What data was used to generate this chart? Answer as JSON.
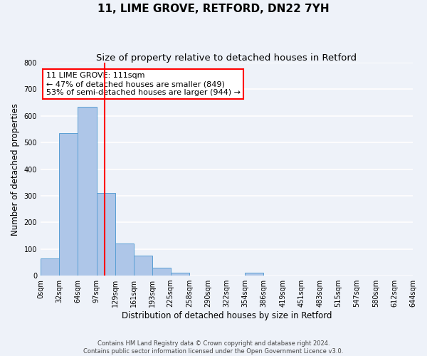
{
  "title": "11, LIME GROVE, RETFORD, DN22 7YH",
  "subtitle": "Size of property relative to detached houses in Retford",
  "xlabel": "Distribution of detached houses by size in Retford",
  "ylabel": "Number of detached properties",
  "bin_edges": [
    0,
    32,
    64,
    97,
    129,
    161,
    193,
    225,
    258,
    290,
    322,
    354,
    386,
    419,
    451,
    483,
    515,
    547,
    580,
    612,
    644
  ],
  "bin_labels": [
    "0sqm",
    "32sqm",
    "64sqm",
    "97sqm",
    "129sqm",
    "161sqm",
    "193sqm",
    "225sqm",
    "258sqm",
    "290sqm",
    "322sqm",
    "354sqm",
    "386sqm",
    "419sqm",
    "451sqm",
    "483sqm",
    "515sqm",
    "547sqm",
    "580sqm",
    "612sqm",
    "644sqm"
  ],
  "bar_heights": [
    65,
    535,
    635,
    310,
    120,
    75,
    30,
    10,
    0,
    0,
    0,
    10,
    0,
    0,
    0,
    0,
    0,
    0,
    0,
    0
  ],
  "bar_color": "#aec6e8",
  "bar_edge_color": "#5a9fd4",
  "ylim": [
    0,
    800
  ],
  "yticks": [
    0,
    100,
    200,
    300,
    400,
    500,
    600,
    700,
    800
  ],
  "property_size": 111,
  "property_size_label": "11 LIME GROVE: 111sqm",
  "red_line_x": 111,
  "pct_smaller": 47,
  "pct_smaller_count": 849,
  "pct_larger_semi": 53,
  "pct_larger_semi_count": 944,
  "footer_line1": "Contains HM Land Registry data © Crown copyright and database right 2024.",
  "footer_line2": "Contains public sector information licensed under the Open Government Licence v3.0.",
  "background_color": "#eef2f9",
  "grid_color": "#ffffff",
  "title_fontsize": 11,
  "subtitle_fontsize": 9.5,
  "axis_label_fontsize": 8.5,
  "tick_fontsize": 7,
  "footer_fontsize": 6,
  "annot_fontsize": 8
}
